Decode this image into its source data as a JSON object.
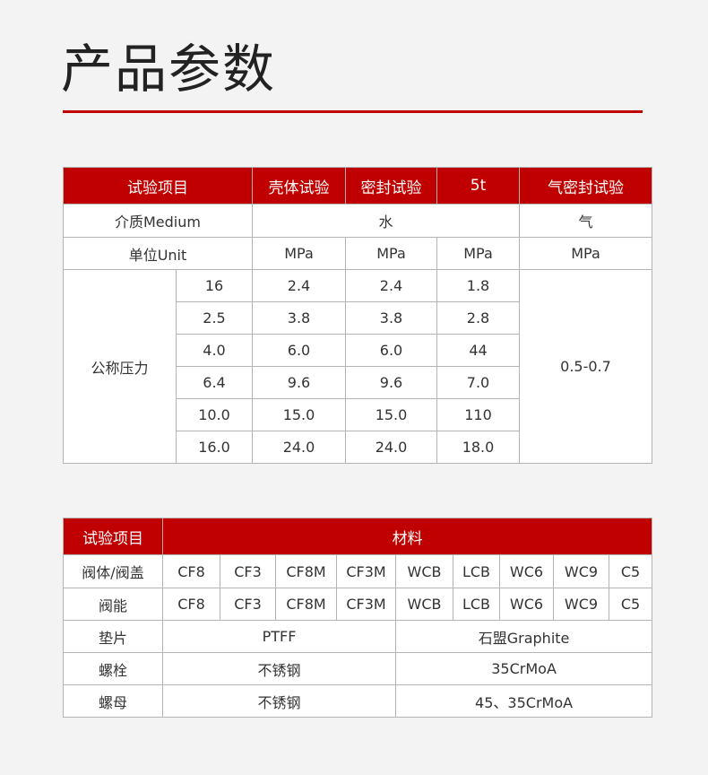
{
  "title": "产品参数",
  "accent_color": "#c00000",
  "table1": {
    "header": [
      "试验项目",
      "壳体试验",
      "密封试验",
      "5t",
      "气密封试验"
    ],
    "medium": {
      "label": "介质Medium",
      "water": "水",
      "gas": "气"
    },
    "unit": {
      "label": "单位Unit",
      "values": [
        "MPa",
        "MPa",
        "MPa",
        "MPa"
      ]
    },
    "pressure_label": "公称压力",
    "gas_range": "0.5-0.7",
    "rows": [
      [
        "16",
        "2.4",
        "2.4",
        "1.8"
      ],
      [
        "2.5",
        "3.8",
        "3.8",
        "2.8"
      ],
      [
        "4.0",
        "6.0",
        "6.0",
        "44"
      ],
      [
        "6.4",
        "9.6",
        "9.6",
        "7.0"
      ],
      [
        "10.0",
        "15.0",
        "15.0",
        "110"
      ],
      [
        "16.0",
        "24.0",
        "24.0",
        "18.0"
      ]
    ]
  },
  "table2": {
    "header": [
      "试验项目",
      "材料"
    ],
    "body_bonnet": {
      "label": "阀体/阀盖",
      "values": [
        "CF8",
        "CF3",
        "CF8M",
        "CF3M",
        "WCB",
        "LCB",
        "WC6",
        "WC9",
        "C5"
      ]
    },
    "disc": {
      "label": "阀能",
      "values": [
        "CF8",
        "CF3",
        "CF8M",
        "CF3M",
        "WCB",
        "LCB",
        "WC6",
        "WC9",
        "C5"
      ]
    },
    "gasket": {
      "label": "垫片",
      "values": [
        "PTFF",
        "石盟Graphite"
      ]
    },
    "bolt": {
      "label": "螺栓",
      "values": [
        "不锈钢",
        "35CrMoA"
      ]
    },
    "nut": {
      "label": "螺母",
      "values": [
        "不锈钢",
        "45、35CrMoA"
      ]
    }
  }
}
